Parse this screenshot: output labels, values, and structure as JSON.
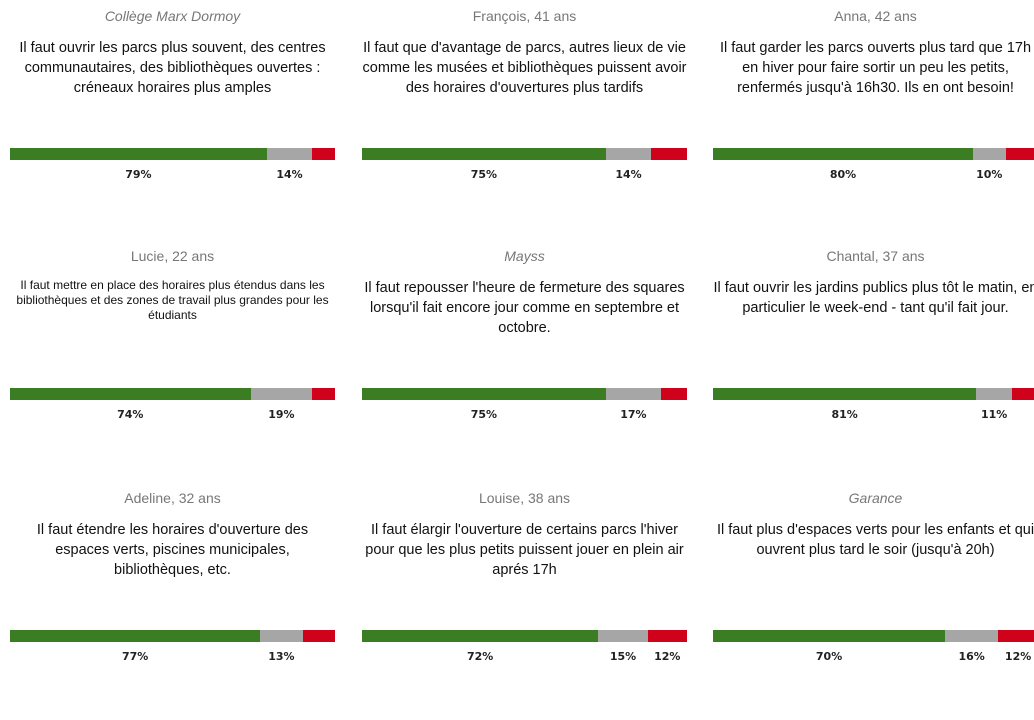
{
  "colors": [
    "#3b7d23",
    "#a6a6a6",
    "#d0021b"
  ],
  "cards": [
    {
      "author": "Collège Marx Dormoy",
      "italic": true,
      "text": "Il faut ouvrir les parcs plus souvent, des centres communautaires, des bibliothèques ouvertes : créneaux horaires plus amples",
      "values": [
        79,
        14,
        7
      ],
      "value_labels": [
        "79%",
        "14%",
        null
      ]
    },
    {
      "author": "François, 41 ans",
      "italic": false,
      "text": "Il faut que d'avantage de parcs, autres lieux de vie comme les musées et bibliothèques puissent avoir des horaires d'ouvertures plus tardifs",
      "values": [
        75,
        14,
        11
      ],
      "value_labels": [
        "75%",
        "14%",
        null
      ]
    },
    {
      "author": "Anna, 42 ans",
      "italic": false,
      "text": "Il faut garder les parcs ouverts plus tard que 17h en hiver pour faire sortir un peu les petits, renfermés jusqu'à 16h30. Ils en ont besoin!",
      "values": [
        80,
        10,
        10
      ],
      "value_labels": [
        "80%",
        "10%",
        null
      ]
    },
    {
      "author": "Lucie, 22 ans",
      "italic": false,
      "small": true,
      "text": "Il faut mettre en place des horaires plus étendus dans les bibliothèques et des zones de travail plus grandes pour les étudiants",
      "values": [
        74,
        19,
        7
      ],
      "value_labels": [
        "74%",
        "19%",
        null
      ]
    },
    {
      "author": "Mayss",
      "italic": true,
      "text": "Il faut repousser l'heure de fermeture des squares lorsqu'il fait encore jour comme en septembre et octobre.",
      "values": [
        75,
        17,
        8
      ],
      "value_labels": [
        "75%",
        "17%",
        null
      ]
    },
    {
      "author": "Chantal, 37 ans",
      "italic": false,
      "text": "Il faut ouvrir les jardins publics plus tôt le matin, en particulier le week-end - tant qu'il fait jour.",
      "values": [
        81,
        11,
        8
      ],
      "value_labels": [
        "81%",
        "11%",
        null
      ]
    },
    {
      "author": "Adeline, 32 ans",
      "italic": false,
      "text": "Il faut étendre les horaires d'ouverture des espaces verts, piscines municipales, bibliothèques, etc.",
      "values": [
        77,
        13,
        10
      ],
      "value_labels": [
        "77%",
        "13%",
        null
      ]
    },
    {
      "author": "Louise, 38 ans",
      "italic": false,
      "text": "Il faut élargir l'ouverture de certains parcs l'hiver pour que les plus petits puissent jouer en plein air aprés 17h",
      "values": [
        72,
        15,
        12
      ],
      "value_labels": [
        "72%",
        "15%",
        "12%"
      ]
    },
    {
      "author": "Garance",
      "italic": true,
      "text": "Il faut plus d'espaces verts pour les enfants et qui ouvrent plus tard le soir (jusqu'à 20h)",
      "values": [
        70,
        16,
        12
      ],
      "value_labels": [
        "70%",
        "16%",
        "12%"
      ]
    }
  ]
}
